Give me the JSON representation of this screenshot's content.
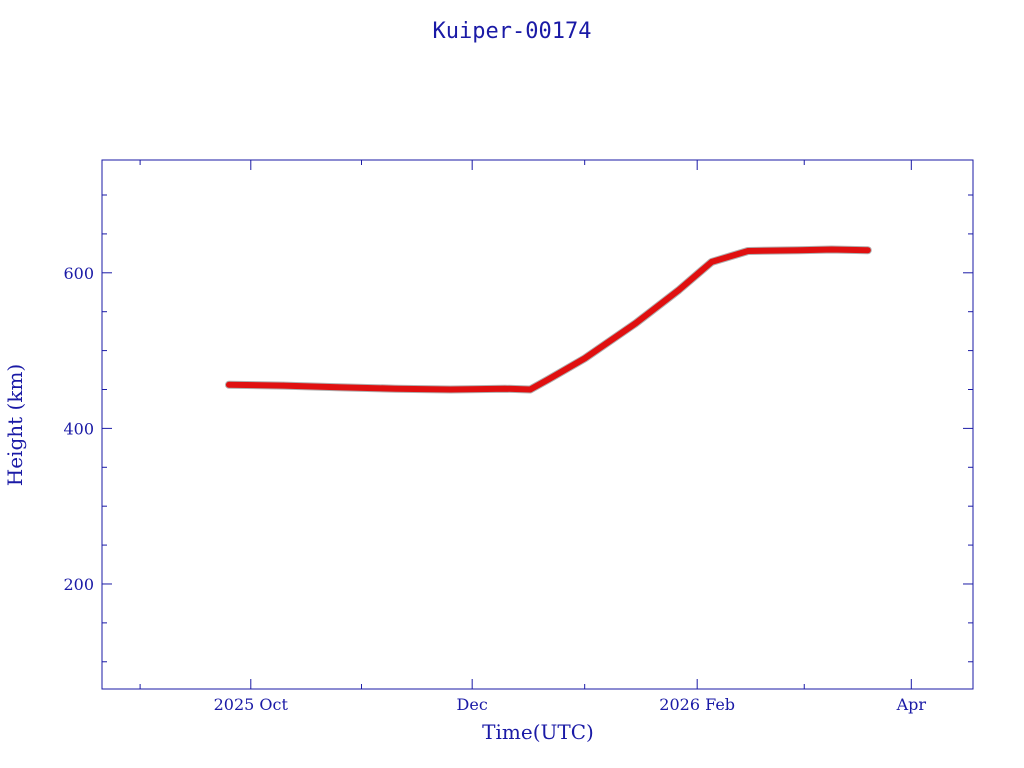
{
  "chart_data": {
    "type": "line",
    "title": "Kuiper-00174",
    "xlabel": "Time(UTC)",
    "ylabel": "Height (km)",
    "x_tick_labels": [
      "2025 Oct",
      "Dec",
      "2026 Feb",
      "Apr"
    ],
    "x_ticks": [
      {
        "date": "2025-10-01",
        "label": "2025 Oct"
      },
      {
        "date": "2025-12-01",
        "label": "Dec"
      },
      {
        "date": "2026-02-01",
        "label": "2026 Feb"
      },
      {
        "date": "2026-04-01",
        "label": "Apr"
      }
    ],
    "y_ticks": [
      200,
      400,
      600
    ],
    "y_tick_labels": [
      "200",
      "400",
      "600"
    ],
    "xlim": [
      "2025-08-21",
      "2026-04-18"
    ],
    "ylim": [
      65,
      745
    ],
    "grid": false,
    "series": [
      {
        "color": "#e01010",
        "points": [
          [
            "2025-09-25",
            456
          ],
          [
            "2025-10-10",
            455
          ],
          [
            "2025-10-25",
            453
          ],
          [
            "2025-11-10",
            451
          ],
          [
            "2025-11-25",
            450
          ],
          [
            "2025-12-10",
            451
          ],
          [
            "2025-12-17",
            450
          ],
          [
            "2025-12-22",
            463
          ],
          [
            "2026-01-01",
            490
          ],
          [
            "2026-01-15",
            535
          ],
          [
            "2026-01-27",
            578
          ],
          [
            "2026-02-02",
            602
          ],
          [
            "2026-02-05",
            614
          ],
          [
            "2026-02-15",
            628
          ],
          [
            "2026-03-01",
            629
          ],
          [
            "2026-03-10",
            630
          ],
          [
            "2026-03-20",
            629
          ]
        ]
      }
    ]
  },
  "colors": {
    "axis": "#1a1aa6",
    "series": "#e01010"
  }
}
